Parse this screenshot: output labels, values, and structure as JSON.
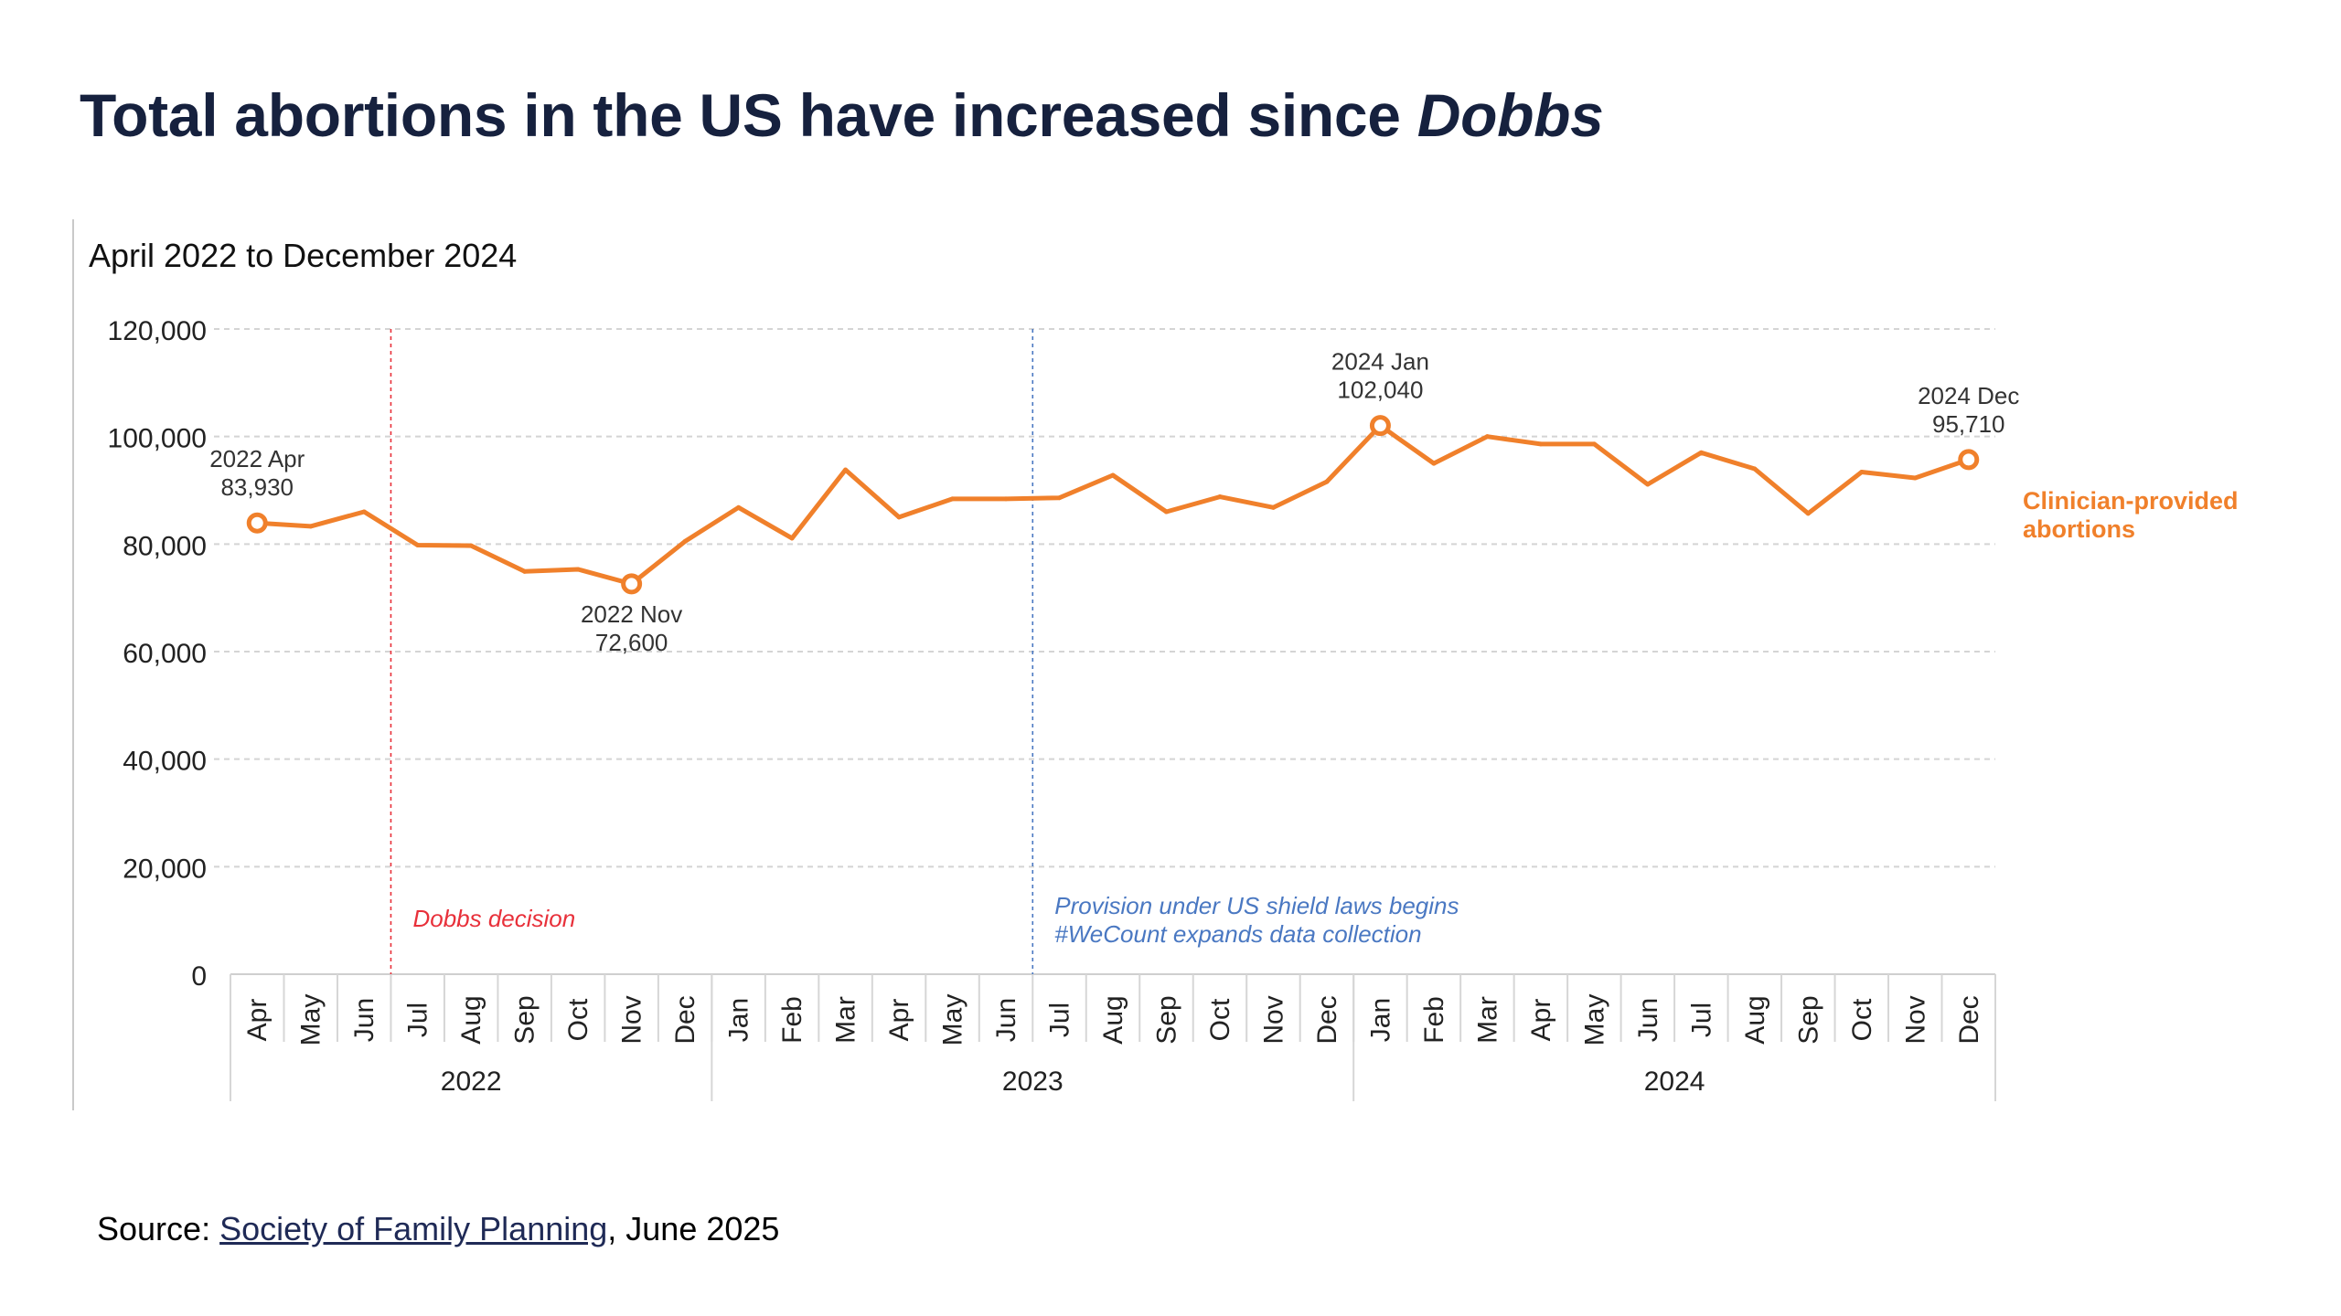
{
  "title": {
    "main": "Total abortions in the US have increased since ",
    "emphasis": "Dobbs"
  },
  "subtitle": "April 2022 to December 2024",
  "source": {
    "prefix": "Source: ",
    "link_text": "Society of Family Planning",
    "suffix": ", June 2025"
  },
  "colors": {
    "series": "#f0802b",
    "dobbs": "#e8303a",
    "shield": "#4a78c2",
    "grid": "#d4d4d4",
    "text": "#222222",
    "title": "#16213e"
  },
  "chart_data": {
    "type": "line",
    "ylim": [
      0,
      120000
    ],
    "yticks": [
      0,
      20000,
      40000,
      60000,
      80000,
      100000,
      120000
    ],
    "ytick_labels": [
      "0",
      "20,000",
      "40,000",
      "60,000",
      "80,000",
      "100,000",
      "120,000"
    ],
    "grid": true,
    "categories": [
      "Apr",
      "May",
      "Jun",
      "Jul",
      "Aug",
      "Sep",
      "Oct",
      "Nov",
      "Dec",
      "Jan",
      "Feb",
      "Mar",
      "Apr",
      "May",
      "Jun",
      "Jul",
      "Aug",
      "Sep",
      "Oct",
      "Nov",
      "Dec",
      "Jan",
      "Feb",
      "Mar",
      "Apr",
      "May",
      "Jun",
      "Jul",
      "Aug",
      "Sep",
      "Oct",
      "Nov",
      "Dec"
    ],
    "year_groups": [
      {
        "label": "2022",
        "start": 0,
        "end": 8
      },
      {
        "label": "2023",
        "start": 9,
        "end": 20
      },
      {
        "label": "2024",
        "start": 21,
        "end": 32
      }
    ],
    "series": [
      {
        "name": "Clinician-provided abortions",
        "values": [
          83930,
          83300,
          86000,
          79800,
          79700,
          74900,
          75300,
          72600,
          80500,
          86800,
          81100,
          93800,
          85000,
          88400,
          88400,
          88600,
          92800,
          86000,
          88800,
          86800,
          91600,
          102040,
          95000,
          100000,
          98600,
          98600,
          91100,
          97000,
          94000,
          85700,
          93400,
          92300,
          95710
        ]
      }
    ],
    "highlighted_points": [
      {
        "index": 0,
        "label_line1": "2022 Apr",
        "label_line2": "83,930",
        "side": "above"
      },
      {
        "index": 7,
        "label_line1": "2022 Nov",
        "label_line2": "72,600",
        "side": "below"
      },
      {
        "index": 21,
        "label_line1": "2024 Jan",
        "label_line2": "102,040",
        "side": "above"
      },
      {
        "index": 32,
        "label_line1": "2024 Dec",
        "label_line2": "95,710",
        "side": "above"
      }
    ],
    "series_label": [
      "Clinician-provided",
      "abortions"
    ],
    "reference_lines": [
      {
        "after_index": 2,
        "color_key": "dobbs",
        "lines": [
          "Dobbs decision"
        ]
      },
      {
        "after_index": 14,
        "color_key": "shield",
        "lines": [
          "Provision under US shield laws begins",
          "#WeCount expands data collection"
        ]
      }
    ]
  }
}
